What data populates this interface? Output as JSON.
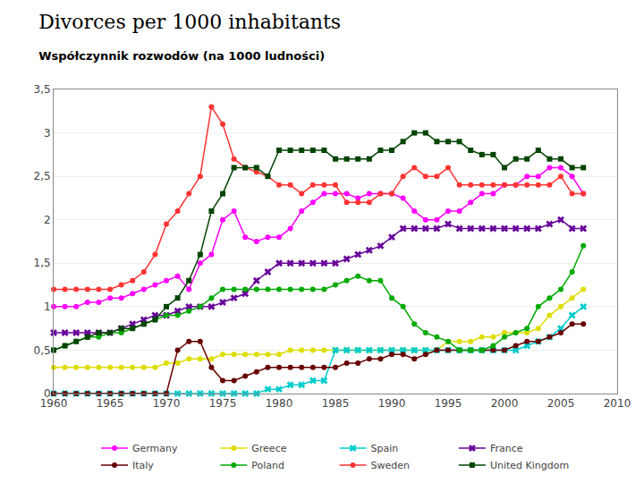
{
  "chart_data": {
    "type": "line",
    "title": "Divorces per 1000 inhabitants",
    "subtitle": "Współczynnik rozwodów (na 1000 ludności)",
    "x": [
      1960,
      1961,
      1962,
      1963,
      1964,
      1965,
      1966,
      1967,
      1968,
      1969,
      1970,
      1971,
      1972,
      1973,
      1974,
      1975,
      1976,
      1977,
      1978,
      1979,
      1980,
      1981,
      1982,
      1983,
      1984,
      1985,
      1986,
      1987,
      1988,
      1989,
      1990,
      1991,
      1992,
      1993,
      1994,
      1995,
      1996,
      1997,
      1998,
      1999,
      2000,
      2001,
      2002,
      2003,
      2004,
      2005,
      2006,
      2007
    ],
    "xlim": [
      1960,
      2010
    ],
    "xticks": [
      1960,
      1965,
      1970,
      1975,
      1980,
      1985,
      1990,
      1995,
      2000,
      2005,
      2010
    ],
    "ylim": [
      0,
      3.5
    ],
    "yticks": [
      0,
      {
        "value": 0.5,
        "label": "0,5"
      },
      1,
      {
        "value": 1.5,
        "label": "1,5"
      },
      2,
      {
        "value": 2.5,
        "label": "2,5"
      },
      3,
      {
        "value": 3.5,
        "label": "3,5"
      }
    ],
    "grid": "y",
    "legend": "bottom",
    "series": [
      {
        "name": "Germany",
        "color": "#FF00FF",
        "marker": "circle",
        "values": [
          1.0,
          1.0,
          1.0,
          1.05,
          1.05,
          1.1,
          1.1,
          1.15,
          1.2,
          1.25,
          1.3,
          1.35,
          1.2,
          1.5,
          1.6,
          2.0,
          2.1,
          1.8,
          1.75,
          1.8,
          1.8,
          1.9,
          2.1,
          2.2,
          2.3,
          2.3,
          2.3,
          2.25,
          2.3,
          2.3,
          2.3,
          2.25,
          2.1,
          2.0,
          2.0,
          2.1,
          2.1,
          2.2,
          2.3,
          2.3,
          2.4,
          2.4,
          2.5,
          2.5,
          2.6,
          2.6,
          2.5,
          2.3
        ]
      },
      {
        "name": "Greece",
        "color": "#DDDD00",
        "marker": "circle",
        "values": [
          0.3,
          0.3,
          0.3,
          0.3,
          0.3,
          0.3,
          0.3,
          0.3,
          0.3,
          0.3,
          0.35,
          0.35,
          0.4,
          0.4,
          0.4,
          0.45,
          0.45,
          0.45,
          0.45,
          0.45,
          0.45,
          0.5,
          0.5,
          0.5,
          0.5,
          0.5,
          0.5,
          0.5,
          0.5,
          0.5,
          0.5,
          0.5,
          0.5,
          0.5,
          0.5,
          0.6,
          0.6,
          0.6,
          0.65,
          0.65,
          0.7,
          0.7,
          0.7,
          0.75,
          0.9,
          1.0,
          1.1,
          1.2
        ]
      },
      {
        "name": "Spain",
        "color": "#00CCCC",
        "marker": "x",
        "values": [
          0.0,
          0.0,
          0.0,
          0.0,
          0.0,
          0.0,
          0.0,
          0.0,
          0.0,
          0.0,
          0.0,
          0.0,
          0.0,
          0.0,
          0.0,
          0.0,
          0.0,
          0.0,
          0.0,
          0.05,
          0.05,
          0.1,
          0.1,
          0.15,
          0.15,
          0.5,
          0.5,
          0.5,
          0.5,
          0.5,
          0.5,
          0.5,
          0.5,
          0.5,
          0.5,
          0.5,
          0.5,
          0.5,
          0.5,
          0.5,
          0.5,
          0.5,
          0.55,
          0.6,
          0.65,
          0.75,
          0.9,
          1.0
        ]
      },
      {
        "name": "France",
        "color": "#660099",
        "marker": "x",
        "values": [
          0.7,
          0.7,
          0.7,
          0.7,
          0.7,
          0.7,
          0.75,
          0.8,
          0.85,
          0.9,
          0.9,
          0.95,
          1.0,
          1.0,
          1.0,
          1.05,
          1.1,
          1.15,
          1.3,
          1.4,
          1.5,
          1.5,
          1.5,
          1.5,
          1.5,
          1.5,
          1.55,
          1.6,
          1.65,
          1.7,
          1.8,
          1.9,
          1.9,
          1.9,
          1.9,
          1.95,
          1.9,
          1.9,
          1.9,
          1.9,
          1.9,
          1.9,
          1.9,
          1.9,
          1.95,
          2.0,
          1.9,
          1.9
        ]
      },
      {
        "name": "Italy",
        "color": "#660000",
        "marker": "circle",
        "values": [
          0.0,
          0.0,
          0.0,
          0.0,
          0.0,
          0.0,
          0.0,
          0.0,
          0.0,
          0.0,
          0.0,
          0.5,
          0.6,
          0.6,
          0.3,
          0.15,
          0.15,
          0.2,
          0.25,
          0.3,
          0.3,
          0.3,
          0.3,
          0.3,
          0.3,
          0.3,
          0.35,
          0.35,
          0.4,
          0.4,
          0.45,
          0.45,
          0.4,
          0.45,
          0.5,
          0.5,
          0.5,
          0.5,
          0.5,
          0.5,
          0.5,
          0.55,
          0.6,
          0.6,
          0.65,
          0.7,
          0.8,
          0.8
        ]
      },
      {
        "name": "Poland",
        "color": "#00AA00",
        "marker": "circle",
        "values": [
          0.5,
          0.55,
          0.6,
          0.65,
          0.65,
          0.7,
          0.7,
          0.75,
          0.8,
          0.85,
          0.9,
          0.9,
          0.95,
          1.0,
          1.1,
          1.2,
          1.2,
          1.2,
          1.2,
          1.2,
          1.2,
          1.2,
          1.2,
          1.2,
          1.2,
          1.25,
          1.3,
          1.35,
          1.3,
          1.3,
          1.1,
          1.0,
          0.8,
          0.7,
          0.65,
          0.6,
          0.5,
          0.5,
          0.5,
          0.55,
          0.65,
          0.7,
          0.75,
          1.0,
          1.1,
          1.2,
          1.4,
          1.7
        ]
      },
      {
        "name": "Sweden",
        "color": "#FF3333",
        "marker": "circle",
        "values": [
          1.2,
          1.2,
          1.2,
          1.2,
          1.2,
          1.2,
          1.25,
          1.3,
          1.4,
          1.6,
          1.95,
          2.1,
          2.3,
          2.5,
          3.3,
          3.1,
          2.7,
          2.6,
          2.55,
          2.5,
          2.4,
          2.4,
          2.3,
          2.4,
          2.4,
          2.4,
          2.2,
          2.2,
          2.2,
          2.3,
          2.3,
          2.5,
          2.6,
          2.5,
          2.5,
          2.6,
          2.4,
          2.4,
          2.4,
          2.4,
          2.4,
          2.4,
          2.4,
          2.4,
          2.4,
          2.5,
          2.3,
          2.3
        ]
      },
      {
        "name": "United Kingdom",
        "color": "#004400",
        "marker": "square",
        "values": [
          0.5,
          0.55,
          0.6,
          0.65,
          0.7,
          0.7,
          0.75,
          0.75,
          0.8,
          0.85,
          1.0,
          1.1,
          1.3,
          1.6,
          2.1,
          2.3,
          2.6,
          2.6,
          2.6,
          2.5,
          2.8,
          2.8,
          2.8,
          2.8,
          2.8,
          2.7,
          2.7,
          2.7,
          2.7,
          2.8,
          2.8,
          2.9,
          3.0,
          3.0,
          2.9,
          2.9,
          2.9,
          2.8,
          2.75,
          2.75,
          2.6,
          2.7,
          2.7,
          2.8,
          2.7,
          2.7,
          2.6,
          2.6
        ]
      }
    ]
  }
}
